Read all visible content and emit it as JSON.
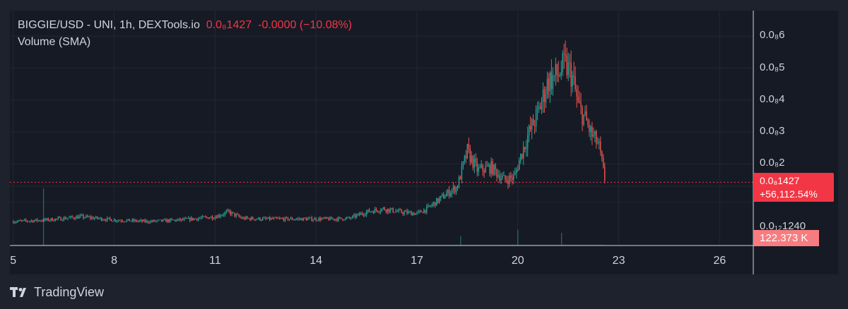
{
  "legend": {
    "symbol": "BIGGIE/USD - UNI, 1h, DEXTools.io",
    "price": "0.0₈1427",
    "change": "-0.0000 (−10.08%)",
    "indicator": "Volume (SMA)"
  },
  "price_badge": {
    "price": "0.0₈1427",
    "percent": "+56,112.54%"
  },
  "volume_badge": "122.373 K",
  "vol_axis_label": "0.0₁₂1240",
  "brand": "TradingView",
  "colors": {
    "up": "#26a69a",
    "down": "#ef5350",
    "background": "#161a25",
    "badge": "#f23645"
  },
  "icons": {
    "brand_logo": "tradingview-logo-icon"
  },
  "chart_data": {
    "type": "candlestick",
    "title": "BIGGIE/USD - UNI, 1h, DEXTools.io",
    "x_ticks": [
      "5",
      "8",
      "11",
      "14",
      "17",
      "20",
      "23",
      "26"
    ],
    "y_ticks": [
      {
        "label": "0.0₈2",
        "value": 2
      },
      {
        "label": "0.0₈3",
        "value": 3
      },
      {
        "label": "0.0₈4",
        "value": 4
      },
      {
        "label": "0.0₈5",
        "value": 5
      },
      {
        "label": "0.0₈6",
        "value": 6
      }
    ],
    "y_unit": "1e-9 USD",
    "ylim": [
      -0.55,
      6.8
    ],
    "xlim": [
      4.9,
      27.0
    ],
    "last_price": 1.427,
    "grid": true,
    "series": [
      {
        "name": "BIGGIE/USD",
        "points": [
          [
            5.0,
            0.2
          ],
          [
            6.0,
            0.25
          ],
          [
            7.0,
            0.35
          ],
          [
            7.5,
            0.3
          ],
          [
            8.0,
            0.25
          ],
          [
            9.0,
            0.2
          ],
          [
            10.0,
            0.25
          ],
          [
            11.0,
            0.35
          ],
          [
            11.4,
            0.5
          ],
          [
            11.8,
            0.3
          ],
          [
            12.5,
            0.28
          ],
          [
            13.5,
            0.28
          ],
          [
            14.5,
            0.28
          ],
          [
            15.0,
            0.3
          ],
          [
            15.5,
            0.5
          ],
          [
            16.0,
            0.6
          ],
          [
            16.5,
            0.5
          ],
          [
            17.0,
            0.45
          ],
          [
            17.3,
            0.6
          ],
          [
            17.8,
            1.0
          ],
          [
            18.2,
            1.3
          ],
          [
            18.5,
            2.4
          ],
          [
            18.8,
            1.8
          ],
          [
            19.2,
            1.9
          ],
          [
            19.6,
            1.5
          ],
          [
            19.9,
            1.6
          ],
          [
            20.1,
            2.3
          ],
          [
            20.3,
            2.9
          ],
          [
            20.6,
            3.6
          ],
          [
            20.9,
            4.6
          ],
          [
            21.2,
            4.8
          ],
          [
            21.4,
            5.1
          ],
          [
            21.6,
            4.8
          ],
          [
            21.8,
            3.8
          ],
          [
            22.0,
            3.4
          ],
          [
            22.2,
            2.9
          ],
          [
            22.4,
            2.6
          ],
          [
            22.6,
            1.43
          ]
        ]
      }
    ],
    "volume_series": {
      "name": "Volume (SMA)",
      "spikes": [
        [
          5.9,
          0.9
        ],
        [
          18.3,
          0.15
        ],
        [
          20.0,
          0.25
        ],
        [
          21.3,
          0.2
        ]
      ]
    }
  }
}
